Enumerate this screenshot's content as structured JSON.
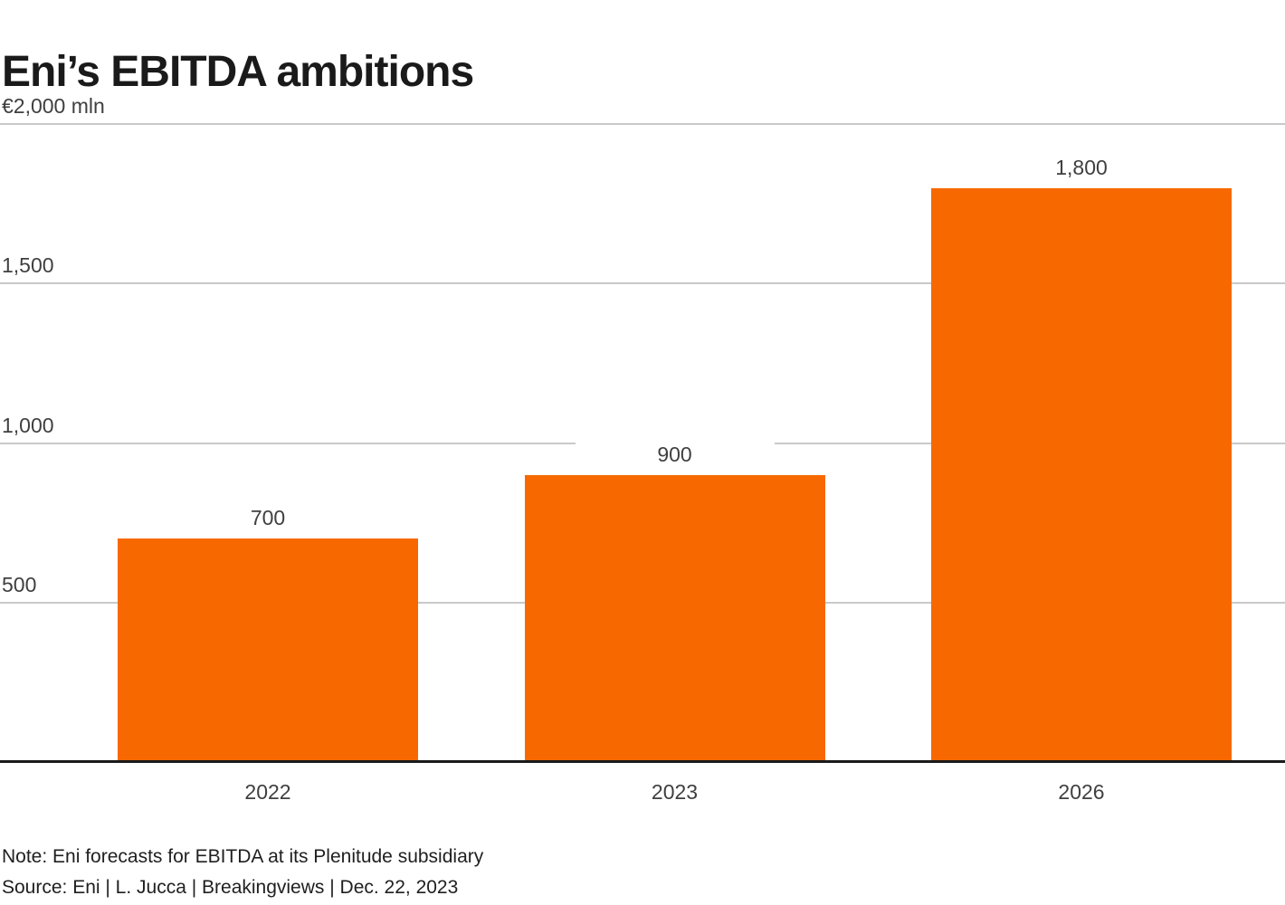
{
  "chart_data": {
    "type": "bar",
    "title": "Eni’s EBITDA ambitions",
    "categories": [
      "2022",
      "2023",
      "2026"
    ],
    "values": [
      700,
      900,
      1800
    ],
    "value_labels": [
      "700",
      "900",
      "1,800"
    ],
    "ylim": [
      0,
      2000
    ],
    "yticks": [
      {
        "value": 2000,
        "label": "€2,000 mln"
      },
      {
        "value": 1500,
        "label": "1,500"
      },
      {
        "value": 1000,
        "label": "1,000"
      },
      {
        "value": 500,
        "label": "500"
      }
    ],
    "grid": true,
    "legend_position": "none",
    "xlabel": "",
    "ylabel": "€ mln",
    "note": "Note: Eni forecasts for EBITDA at its Plenitude subsidiary",
    "source": "Source: Eni | L. Jucca | Breakingviews | Dec. 22, 2023"
  },
  "colors": {
    "bar": "#f76900",
    "title_text": "#1a1a1a",
    "tick_text": "#3f3f3f",
    "note_text": "#1f1f1f",
    "gridline": "#c9c9c9",
    "axis_line": "#1a1a1a",
    "background": "#ffffff"
  }
}
